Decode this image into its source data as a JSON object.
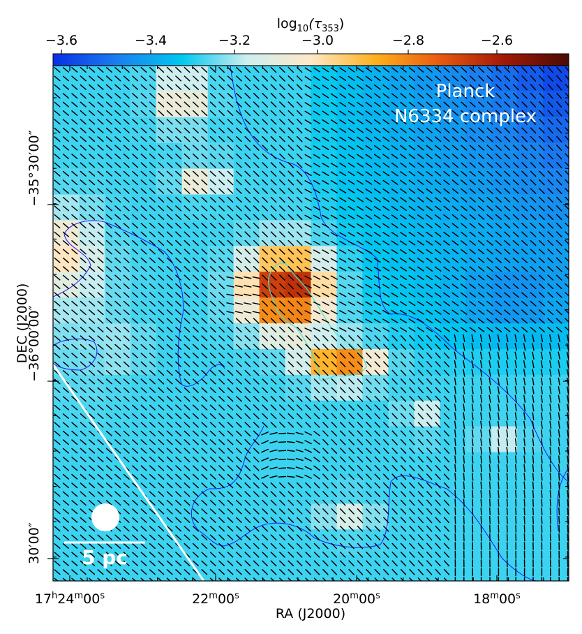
{
  "colorbar": {
    "label_prefix": "log",
    "label_sub": "10",
    "label_tau": "(τ",
    "label_tau_sub": "353",
    "label_close": ")",
    "ticks": [
      "−3.6",
      "−3.4",
      "−3.2",
      "−3.0",
      "−2.8",
      "−2.6"
    ],
    "stops": [
      "#0a2fe6",
      "#1a7ff0",
      "#00c8f0",
      "#cdeef0",
      "#ffe8c8",
      "#ffb01e",
      "#e85a10",
      "#a01808",
      "#4a0c06"
    ]
  },
  "annotation": {
    "line1": "Planck",
    "line2": "N6334 complex",
    "scalebar": "5 pc"
  },
  "x_axis": {
    "label": "RA (J2000)",
    "ticks": [
      {
        "h": "17",
        "m": "24",
        "s": "00"
      },
      {
        "h": "",
        "m": "22",
        "s": "00"
      },
      {
        "h": "",
        "m": "20",
        "s": "00"
      },
      {
        "h": "",
        "m": "18",
        "s": "00"
      }
    ],
    "h_unit": "h",
    "m_unit": "m",
    "s_unit": "s"
  },
  "y_axis": {
    "label": "DEC (J2000)",
    "ticks": [
      "−35°30′00″",
      "−36°00′00″",
      "30′00″"
    ]
  },
  "colors": {
    "contour": "#1a1aff",
    "vectors": "#000000",
    "core_contour": "#40e0d0",
    "overlay_text": "#ffffff"
  }
}
